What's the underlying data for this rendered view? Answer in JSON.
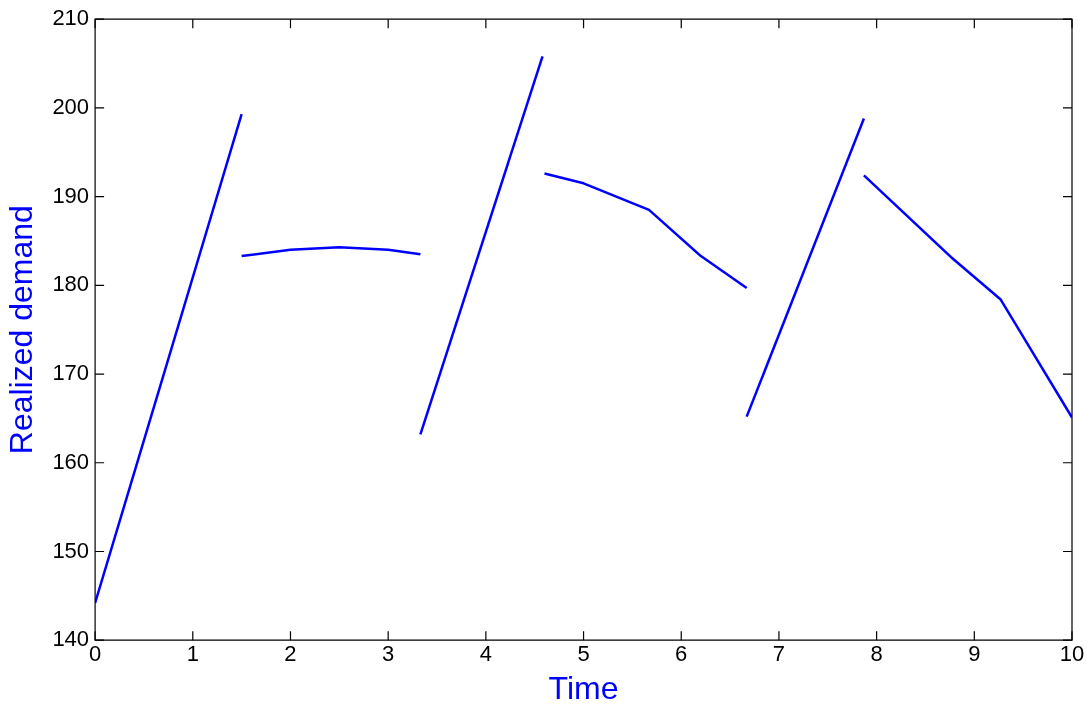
{
  "chart_data": {
    "type": "line",
    "xlabel": "Time",
    "ylabel": "Realized demand",
    "series": [
      {
        "color": "#0000ff",
        "x": [
          0,
          0.75,
          1.5
        ],
        "values": [
          144.2,
          171.7,
          199.3
        ]
      },
      {
        "color": "#0000ff",
        "x": [
          1.5,
          2,
          2.5,
          3,
          3.33
        ],
        "values": [
          183.3,
          184.0,
          184.3,
          184.0,
          183.5
        ]
      },
      {
        "color": "#0000ff",
        "x": [
          3.33,
          4.58
        ],
        "values": [
          163.2,
          205.8
        ]
      },
      {
        "color": "#0000ff",
        "x": [
          4.6,
          5,
          5.67,
          6.19,
          6.67
        ],
        "values": [
          192.6,
          191.5,
          188.5,
          183.4,
          179.7
        ]
      },
      {
        "color": "#0000ff",
        "x": [
          6.67,
          7.87
        ],
        "values": [
          165.2,
          198.8
        ]
      },
      {
        "color": "#0000ff",
        "x": [
          7.87,
          8.76,
          9.27,
          10
        ],
        "values": [
          192.4,
          183.2,
          178.4,
          165.1
        ]
      }
    ],
    "xlim": [
      0,
      10
    ],
    "xticks": [
      0,
      1,
      2,
      3,
      4,
      5,
      6,
      7,
      8,
      9,
      10
    ],
    "ylim": [
      140,
      210
    ],
    "yticks": [
      140,
      150,
      160,
      170,
      180,
      190,
      200,
      210
    ],
    "grid": false,
    "legend": false,
    "marker": "none",
    "line_style": "solid"
  }
}
